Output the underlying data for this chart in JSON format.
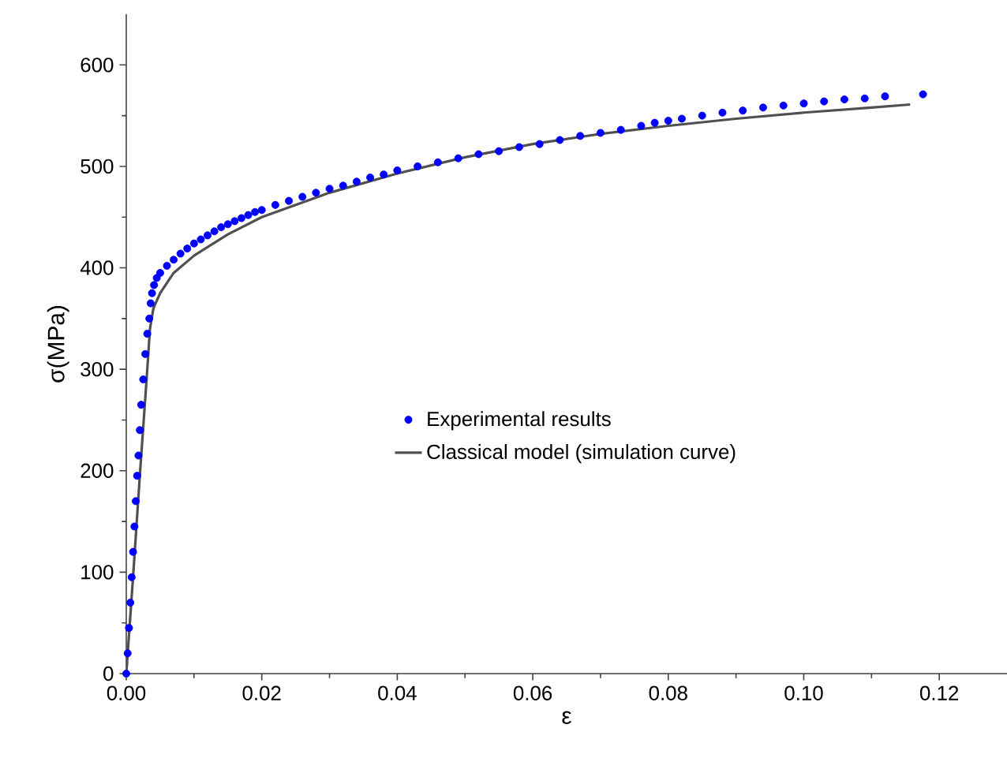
{
  "chart_data": {
    "type": "scatter",
    "xlabel": "ε",
    "ylabel": "σ(MPa)",
    "xlim": [
      0,
      0.13
    ],
    "ylim": [
      0,
      650
    ],
    "xticks": [
      {
        "value": 0,
        "label": "0.00"
      },
      {
        "value": 0.02,
        "label": "0.02"
      },
      {
        "value": 0.04,
        "label": "0.04"
      },
      {
        "value": 0.06,
        "label": "0.06"
      },
      {
        "value": 0.08,
        "label": "0.08"
      },
      {
        "value": 0.1,
        "label": "0.10"
      },
      {
        "value": 0.12,
        "label": "0.12"
      }
    ],
    "yticks": [
      0,
      100,
      200,
      300,
      400,
      500,
      600
    ],
    "grid": false,
    "legend": "center",
    "series": [
      {
        "name": "Experimental results",
        "marker": "circle",
        "color": "#0000ff",
        "x": [
          0,
          0.0002,
          0.0004,
          0.0006,
          0.0008,
          0.001,
          0.0012,
          0.0014,
          0.0016,
          0.0018,
          0.002,
          0.0022,
          0.0025,
          0.0028,
          0.0031,
          0.0034,
          0.0036,
          0.0038,
          0.0041,
          0.0045,
          0.005,
          0.006,
          0.007,
          0.008,
          0.009,
          0.01,
          0.011,
          0.012,
          0.013,
          0.014,
          0.015,
          0.016,
          0.017,
          0.018,
          0.019,
          0.02,
          0.022,
          0.024,
          0.026,
          0.028,
          0.03,
          0.032,
          0.034,
          0.036,
          0.038,
          0.04,
          0.043,
          0.046,
          0.049,
          0.052,
          0.055,
          0.058,
          0.061,
          0.064,
          0.067,
          0.07,
          0.073,
          0.076,
          0.078,
          0.08,
          0.082,
          0.085,
          0.088,
          0.091,
          0.094,
          0.097,
          0.1,
          0.103,
          0.106,
          0.109,
          0.112,
          0.1176
        ],
        "values": [
          0,
          20,
          45,
          70,
          95,
          120,
          145,
          170,
          195,
          215,
          240,
          265,
          290,
          315,
          335,
          350,
          365,
          375,
          383,
          390,
          395,
          402,
          408,
          414,
          419,
          424,
          428,
          432,
          436,
          440,
          443,
          446,
          449,
          452,
          455,
          457,
          462,
          466,
          470,
          474,
          478,
          481,
          485,
          489,
          492,
          496,
          500,
          504,
          508,
          512,
          515,
          519,
          522,
          526,
          530,
          533,
          536,
          540,
          543,
          545,
          547,
          550,
          553,
          555,
          558,
          560,
          562,
          564,
          566,
          567,
          569,
          571
        ]
      },
      {
        "name": "Classical model (simulation curve)",
        "type": "line",
        "marker": "none",
        "line_style": "solid",
        "color": "#505050",
        "x": [
          0,
          0.001,
          0.002,
          0.003,
          0.0035,
          0.004,
          0.005,
          0.007,
          0.01,
          0.015,
          0.02,
          0.03,
          0.04,
          0.05,
          0.06,
          0.07,
          0.08,
          0.09,
          0.1,
          0.11,
          0.1157
        ],
        "values": [
          0,
          95,
          195,
          290,
          340,
          360,
          375,
          395,
          412,
          433,
          450,
          474,
          493,
          509,
          522,
          532,
          540,
          547,
          553,
          558,
          561
        ]
      }
    ]
  }
}
